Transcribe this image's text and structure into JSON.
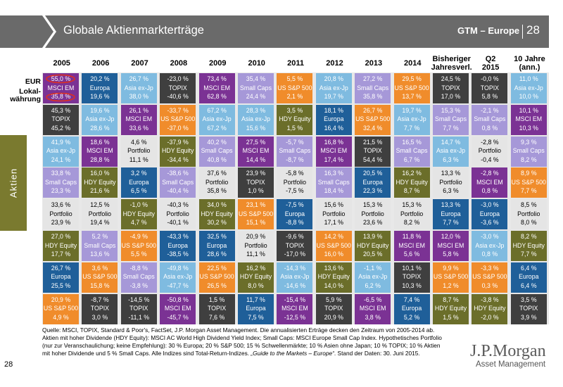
{
  "header": {
    "title": "Globale Aktienmarkterträge",
    "series_name": "GTM – Europe",
    "page_number": "28"
  },
  "side_tab": "Aktien",
  "row_labels": {
    "eur": "EUR",
    "local_line1": "Lokal-",
    "local_line2": "währung"
  },
  "colors": {
    "MSCI EM": "#7b3294",
    "Europa": "#1f5f99",
    "Asia ex-Jp": "#7fbbe0",
    "TOPIX": "#3f3f3f",
    "Small Caps": "#a698d8",
    "US S&P 500": "#f08c2b",
    "HDY Equity": "#6b6e2a",
    "Portfolio": "#e5e5e5",
    "banner": "#6a6a6a",
    "side_tab": "#7a7a2f"
  },
  "chart_data": {
    "type": "table",
    "title": "Globale Aktienmarkterträge",
    "columns": [
      "2005",
      "2006",
      "2007",
      "2008",
      "2009",
      "2010",
      "2011",
      "2012",
      "2013",
      "2014",
      "Bisheriger Jahresverl.",
      "Q2 2015",
      "10 Jahre (ann.)"
    ],
    "ranks": [
      [
        {
          "eur": "55,0 %",
          "name": "MSCI EM",
          "local": "35,8 %"
        },
        {
          "eur": "20,2 %",
          "name": "Europa",
          "local": "19,6 %"
        },
        {
          "eur": "26,7 %",
          "name": "Asia ex-Jp",
          "local": "38,0 %"
        },
        {
          "eur": "-23,0 %",
          "name": "TOPIX",
          "local": "-40,6 %"
        },
        {
          "eur": "73,4 %",
          "name": "MSCI EM",
          "local": "62,8 %"
        },
        {
          "eur": "35,4 %",
          "name": "Small Caps",
          "local": "24,4 %"
        },
        {
          "eur": "5,5 %",
          "name": "US S&P 500",
          "local": "2,1 %"
        },
        {
          "eur": "20,8 %",
          "name": "Asia ex-Jp",
          "local": "19,7 %"
        },
        {
          "eur": "27,2 %",
          "name": "Small Caps",
          "local": "35,8 %"
        },
        {
          "eur": "29,5 %",
          "name": "US S&P 500",
          "local": "13,7 %"
        },
        {
          "eur": "24,5 %",
          "name": "TOPIX",
          "local": "17,0 %"
        },
        {
          "eur": "-0,0 %",
          "name": "TOPIX",
          "local": "5,8 %"
        },
        {
          "eur": "11,0 %",
          "name": "Asia ex-Jp",
          "local": "10,0 %"
        }
      ],
      [
        {
          "eur": "45,3 %",
          "name": "TOPIX",
          "local": "45,2 %"
        },
        {
          "eur": "19,6 %",
          "name": "Asia ex-Jp",
          "local": "28,6 %"
        },
        {
          "eur": "26,1 %",
          "name": "MSCI EM",
          "local": "33,6 %"
        },
        {
          "eur": "-33,7 %",
          "name": "US S&P 500",
          "local": "-37,0 %"
        },
        {
          "eur": "67,2 %",
          "name": "Asia ex-Jp",
          "local": "67,2 %"
        },
        {
          "eur": "28,3 %",
          "name": "Asia ex-Jp",
          "local": "15,6 %"
        },
        {
          "eur": "3,5 %",
          "name": "HDY Equity",
          "local": "1,5 %"
        },
        {
          "eur": "18,1 %",
          "name": "Europa",
          "local": "16,4 %"
        },
        {
          "eur": "26,7 %",
          "name": "US S&P 500",
          "local": "32,4 %"
        },
        {
          "eur": "19,7 %",
          "name": "Asia ex-Jp",
          "local": "7,7 %"
        },
        {
          "eur": "15,3 %",
          "name": "Small Caps",
          "local": "7,7 %"
        },
        {
          "eur": "-2,1 %",
          "name": "Small Caps",
          "local": "0,8 %"
        },
        {
          "eur": "10,1 %",
          "name": "MSCI EM",
          "local": "10,3 %"
        }
      ],
      [
        {
          "eur": "41,9 %",
          "name": "Asia ex-Jp",
          "local": "24,1 %"
        },
        {
          "eur": "18,6 %",
          "name": "MSCI EM",
          "local": "28,8 %"
        },
        {
          "eur": "4,6 %",
          "name": "Portfolio",
          "local": "11,1 %"
        },
        {
          "eur": "-37,9 %",
          "name": "HDY Equity",
          "local": "-34,4 %"
        },
        {
          "eur": "40,2 %",
          "name": "Small Caps",
          "local": "40,8 %"
        },
        {
          "eur": "27,5 %",
          "name": "MSCI EM",
          "local": "14,4 %"
        },
        {
          "eur": "-5,7 %",
          "name": "Small Caps",
          "local": "-8,7 %"
        },
        {
          "eur": "16,8 %",
          "name": "MSCI EM",
          "local": "17,4 %"
        },
        {
          "eur": "21,5 %",
          "name": "TOPIX",
          "local": "54,4 %"
        },
        {
          "eur": "16,5 %",
          "name": "Small Caps",
          "local": "6,7 %"
        },
        {
          "eur": "14,7 %",
          "name": "Asia ex-Jp",
          "local": "6,3 %"
        },
        {
          "eur": "-2,8 %",
          "name": "Portfolio",
          "local": "-0,4 %"
        },
        {
          "eur": "9,3 %",
          "name": "Small Caps",
          "local": "8,2 %"
        }
      ],
      [
        {
          "eur": "33,8 %",
          "name": "Small Caps",
          "local": "23,3 %"
        },
        {
          "eur": "16,0 %",
          "name": "HDY Equity",
          "local": "21,6 %"
        },
        {
          "eur": "3,2 %",
          "name": "Europa",
          "local": "6,5 %"
        },
        {
          "eur": "-38,6 %",
          "name": "Small Caps",
          "local": "-40,4 %"
        },
        {
          "eur": "37,6 %",
          "name": "Portfolio",
          "local": "35,8 %"
        },
        {
          "eur": "23,9 %",
          "name": "TOPIX",
          "local": "1,0 %"
        },
        {
          "eur": "-5,8 %",
          "name": "Portfolio",
          "local": "-7,5 %"
        },
        {
          "eur": "16,3 %",
          "name": "Small Caps",
          "local": "18,4 %"
        },
        {
          "eur": "20,5 %",
          "name": "Europa",
          "local": "22,3 %"
        },
        {
          "eur": "16,2 %",
          "name": "HDY Equity",
          "local": "8,7 %"
        },
        {
          "eur": "13,3 %",
          "name": "Portfolio",
          "local": "6,3 %"
        },
        {
          "eur": "-2,8 %",
          "name": "MSCI EM",
          "local": "0,8 %"
        },
        {
          "eur": "8,9 %",
          "name": "US S&P 500",
          "local": "7,7 %"
        }
      ],
      [
        {
          "eur": "33,6 %",
          "name": "Portfolio",
          "local": "23,9 %"
        },
        {
          "eur": "12,5 %",
          "name": "Portfolio",
          "local": "19,4 %"
        },
        {
          "eur": "-1,0 %",
          "name": "HDY Equity",
          "local": "4,7 %"
        },
        {
          "eur": "-40,3 %",
          "name": "Portfolio",
          "local": "-40,1 %"
        },
        {
          "eur": "34,0 %",
          "name": "HDY Equity",
          "local": "30,2 %"
        },
        {
          "eur": "23,1 %",
          "name": "US S&P 500",
          "local": "15,1 %"
        },
        {
          "eur": "-7,5 %",
          "name": "Europa",
          "local": "-8,8 %"
        },
        {
          "eur": "15,6 %",
          "name": "Portfolio",
          "local": "17,1 %"
        },
        {
          "eur": "15,3 %",
          "name": "Portfolio",
          "local": "23,6 %"
        },
        {
          "eur": "15,3 %",
          "name": "Portfolio",
          "local": "8,2 %"
        },
        {
          "eur": "13,3 %",
          "name": "Europa",
          "local": "7,7 %"
        },
        {
          "eur": "-3,0 %",
          "name": "Europa",
          "local": "-3,6 %"
        },
        {
          "eur": "8,5 %",
          "name": "Portfolio",
          "local": "8,0 %"
        }
      ],
      [
        {
          "eur": "27,0 %",
          "name": "HDY Equity",
          "local": "17,7 %"
        },
        {
          "eur": "5,2 %",
          "name": "Small Caps",
          "local": "13,6 %"
        },
        {
          "eur": "-4,9 %",
          "name": "US S&P 500",
          "local": "5,5 %"
        },
        {
          "eur": "-43,3 %",
          "name": "Europa",
          "local": "-38,5 %"
        },
        {
          "eur": "32,5 %",
          "name": "Europa",
          "local": "28,6 %"
        },
        {
          "eur": "20,9 %",
          "name": "Portfolio",
          "local": "11,1 %"
        },
        {
          "eur": "-9,6 %",
          "name": "TOPIX",
          "local": "-17,0 %"
        },
        {
          "eur": "14,2 %",
          "name": "US S&P 500",
          "local": "16,0 %"
        },
        {
          "eur": "13,9 %",
          "name": "HDY Equity",
          "local": "20,5 %"
        },
        {
          "eur": "11,8 %",
          "name": "MSCI EM",
          "local": "5,6 %"
        },
        {
          "eur": "12,0 %",
          "name": "MSCI EM",
          "local": "5,8 %"
        },
        {
          "eur": "-3,0 %",
          "name": "Asia ex-Jp",
          "local": "0,8 %"
        },
        {
          "eur": "8,2 %",
          "name": "HDY Equity",
          "local": "7,7 %"
        }
      ],
      [
        {
          "eur": "26,7 %",
          "name": "Europa",
          "local": "25,5 %"
        },
        {
          "eur": "3,6 %",
          "name": "US S&P 500",
          "local": "15,8 %"
        },
        {
          "eur": "-8,8 %",
          "name": "Small Caps",
          "local": "-3,8 %"
        },
        {
          "eur": "-49,8 %",
          "name": "Asia ex-Jp",
          "local": "-47,7 %"
        },
        {
          "eur": "22,5 %",
          "name": "US S&P 500",
          "local": "26,5 %"
        },
        {
          "eur": "16,2 %",
          "name": "HDY Equity",
          "local": "8,0 %"
        },
        {
          "eur": "-14,3 %",
          "name": "Asia ex-Jp",
          "local": "-14,6 %"
        },
        {
          "eur": "13,6 %",
          "name": "HDY Equity",
          "local": "14,0 %"
        },
        {
          "eur": "-1,1 %",
          "name": "Asia ex-Jp",
          "local": "6,2 %"
        },
        {
          "eur": "10,1 %",
          "name": "TOPIX",
          "local": "10,3 %"
        },
        {
          "eur": "9,9 %",
          "name": "US S&P 500",
          "local": "1,2 %"
        },
        {
          "eur": "-3,3 %",
          "name": "US S&P 500",
          "local": "0,3 %"
        },
        {
          "eur": "6,4 %",
          "name": "Europa",
          "local": "6,4 %"
        }
      ],
      [
        {
          "eur": "20,9 %",
          "name": "US S&P 500",
          "local": "4,9 %"
        },
        {
          "eur": "-8,7 %",
          "name": "TOPIX",
          "local": "3,0 %"
        },
        {
          "eur": "-14,5 %",
          "name": "TOPIX",
          "local": "-11,1 %"
        },
        {
          "eur": "-50,8 %",
          "name": "MSCI EM",
          "local": "-45,7 %"
        },
        {
          "eur": "1,5 %",
          "name": "TOPIX",
          "local": "7,6 %"
        },
        {
          "eur": "11,7 %",
          "name": "Europa",
          "local": "7,5 %"
        },
        {
          "eur": "-15,4 %",
          "name": "MSCI EM",
          "local": "-12,5 %"
        },
        {
          "eur": "5,9 %",
          "name": "TOPIX",
          "local": "20,9 %"
        },
        {
          "eur": "-6,5 %",
          "name": "MSCI EM",
          "local": "3,8 %"
        },
        {
          "eur": "7,4 %",
          "name": "Europa",
          "local": "5,2 %"
        },
        {
          "eur": "8,7 %",
          "name": "HDY Equity",
          "local": "1,5 %"
        },
        {
          "eur": "-3,8 %",
          "name": "HDY Equity",
          "local": "-2,0 %"
        },
        {
          "eur": "3,5 %",
          "name": "TOPIX",
          "local": "3,9 %"
        }
      ]
    ]
  },
  "footnote": {
    "text_before_italic": "Quelle: MSCI, TOPIX, Standard & Poor's, FactSet, J.P. Morgan Asset Management. Die annualisierten Erträge decken den Zeitraum von 2005-2014 ab. Aktien mit hoher Dividende (HDY Equity): MSCI AC World High Dividend Yield Index; Small Caps: MSCI Europe Small Cap Index. Hypothetisches Portfolio (nur zur Veranschaulichung; keine Empfehlung): 30 % Europa; 20 % S&P 500; 15 % Schwellenmärkte; 10 % Asien ohne Japan; 10 % TOPIX; 10 % Aktien mit hoher Dividende und 5 % Small Caps. Alle Indizes sind Total-Return-Indizes. ",
    "italic": "„Guide to the Markets – Europe“",
    "text_after_italic": ". Stand der Daten: 30. Juni 2015."
  },
  "footer_page": "28",
  "logo": {
    "main": "J.P.Morgan",
    "sub": "Asset Management"
  }
}
